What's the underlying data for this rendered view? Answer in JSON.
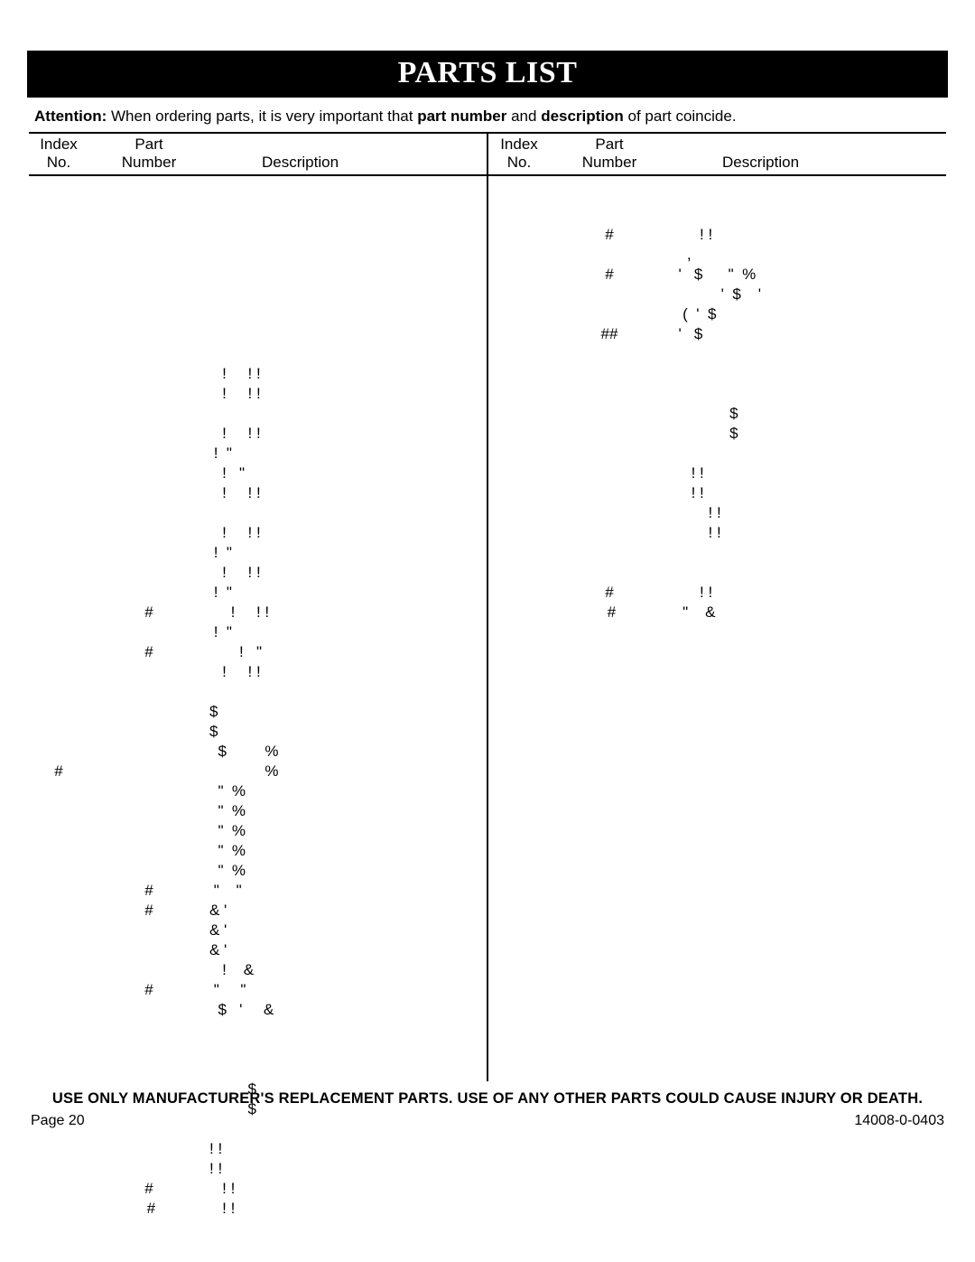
{
  "title": "PARTS LIST",
  "attention_prefix": "Attention:",
  "attention_mid1": " When ordering parts, it is very important that ",
  "attention_bold1": "part number",
  "attention_mid2": " and ",
  "attention_bold2": "description",
  "attention_mid3": " of part coincide.",
  "headers": {
    "index_l1": "Index",
    "index_l2": "No.",
    "part_l1": "Part",
    "part_l2": "Number",
    "desc": "Description"
  },
  "left_rows": [
    {
      "c1": "",
      "c2": "",
      "c3": ""
    },
    {
      "c1": "",
      "c2": "",
      "c3": ""
    },
    {
      "c1": "",
      "c2": "",
      "c3": ""
    },
    {
      "c1": "",
      "c2": "",
      "c3": ""
    },
    {
      "c1": "",
      "c2": "",
      "c3": ""
    },
    {
      "c1": "",
      "c2": "",
      "c3": ""
    },
    {
      "c1": "",
      "c2": "",
      "c3": ""
    },
    {
      "c1": "",
      "c2": "",
      "c3": ""
    },
    {
      "c1": "",
      "c2": "",
      "c3": ""
    },
    {
      "c1": "",
      "c2": "",
      "c3": "   !     ! !"
    },
    {
      "c1": "",
      "c2": "",
      "c3": "   !     ! !"
    },
    {
      "c1": "",
      "c2": "",
      "c3": ""
    },
    {
      "c1": "",
      "c2": "",
      "c3": "   !     ! !"
    },
    {
      "c1": "",
      "c2": "",
      "c3": " !  \""
    },
    {
      "c1": "",
      "c2": "",
      "c3": "   !   \""
    },
    {
      "c1": "",
      "c2": "",
      "c3": "   !     ! !"
    },
    {
      "c1": "",
      "c2": "",
      "c3": ""
    },
    {
      "c1": "",
      "c2": "",
      "c3": "   !     ! !"
    },
    {
      "c1": "",
      "c2": "",
      "c3": " !  \""
    },
    {
      "c1": "",
      "c2": "",
      "c3": "   !     ! !"
    },
    {
      "c1": "",
      "c2": "",
      "c3": " !  \""
    },
    {
      "c1": "",
      "c2": "#",
      "c3": "     !     ! !"
    },
    {
      "c1": "",
      "c2": "",
      "c3": " !  \""
    },
    {
      "c1": "",
      "c2": "#",
      "c3": "       !   \""
    },
    {
      "c1": "",
      "c2": "",
      "c3": "   !     ! !"
    },
    {
      "c1": "",
      "c2": "",
      "c3": ""
    },
    {
      "c1": "",
      "c2": "",
      "c3": "$"
    },
    {
      "c1": "",
      "c2": "",
      "c3": "$"
    },
    {
      "c1": "",
      "c2": "",
      "c3": "  $         %"
    },
    {
      "c1": "#",
      "c2": "",
      "c3": "             %"
    },
    {
      "c1": "",
      "c2": "",
      "c3": "  \"  %"
    },
    {
      "c1": "",
      "c2": "",
      "c3": "  \"  %"
    },
    {
      "c1": "",
      "c2": "",
      "c3": "  \"  %"
    },
    {
      "c1": "",
      "c2": "",
      "c3": "  \"  %"
    },
    {
      "c1": "",
      "c2": "",
      "c3": "  \"  %"
    },
    {
      "c1": "",
      "c2": "#",
      "c3": " \"    \""
    },
    {
      "c1": "",
      "c2": "#",
      "c3": "& '"
    },
    {
      "c1": "",
      "c2": "",
      "c3": "& '"
    },
    {
      "c1": "",
      "c2": "",
      "c3": "& '"
    },
    {
      "c1": "",
      "c2": "",
      "c3": "   !    &"
    },
    {
      "c1": "",
      "c2": "#",
      "c3": " \"     \""
    },
    {
      "c1": "",
      "c2": "",
      "c3": "  $   '     &"
    },
    {
      "c1": "",
      "c2": "",
      "c3": ""
    },
    {
      "c1": "",
      "c2": "",
      "c3": ""
    },
    {
      "c1": "",
      "c2": "",
      "c3": ""
    },
    {
      "c1": "",
      "c2": "",
      "c3": "         $"
    },
    {
      "c1": "",
      "c2": "",
      "c3": "         $"
    },
    {
      "c1": "",
      "c2": "",
      "c3": ""
    },
    {
      "c1": "",
      "c2": "",
      "c3": "! !"
    },
    {
      "c1": "",
      "c2": "",
      "c3": "! !"
    },
    {
      "c1": "",
      "c2": "#",
      "c3": "   ! !"
    },
    {
      "c1": "",
      "c2": " #",
      "c3": "   ! !"
    }
  ],
  "right_rows": [
    {
      "c1": "",
      "c2": "",
      "c3": ""
    },
    {
      "c1": "",
      "c2": "",
      "c3": ""
    },
    {
      "c1": "",
      "c2": "#",
      "c3": "       ! !"
    },
    {
      "c1": "",
      "c2": "",
      "c3": "    ,"
    },
    {
      "c1": "",
      "c2": "#",
      "c3": "  '   $      \"  %"
    },
    {
      "c1": "",
      "c2": "",
      "c3": "            '  $    '"
    },
    {
      "c1": "",
      "c2": "",
      "c3": "   (  '  $"
    },
    {
      "c1": "",
      "c2": "##",
      "c3": "  '   $"
    },
    {
      "c1": "",
      "c2": "",
      "c3": ""
    },
    {
      "c1": "",
      "c2": "",
      "c3": ""
    },
    {
      "c1": "",
      "c2": "",
      "c3": ""
    },
    {
      "c1": "",
      "c2": "",
      "c3": "              $"
    },
    {
      "c1": "",
      "c2": "",
      "c3": "              $"
    },
    {
      "c1": "",
      "c2": "",
      "c3": ""
    },
    {
      "c1": "",
      "c2": "",
      "c3": "     ! !"
    },
    {
      "c1": "",
      "c2": "",
      "c3": "     ! !"
    },
    {
      "c1": "",
      "c2": "",
      "c3": "         ! !"
    },
    {
      "c1": "",
      "c2": "",
      "c3": "         ! !"
    },
    {
      "c1": "",
      "c2": "",
      "c3": ""
    },
    {
      "c1": "",
      "c2": "",
      "c3": ""
    },
    {
      "c1": "",
      "c2": "#",
      "c3": "       ! !"
    },
    {
      "c1": "",
      "c2": " #",
      "c3": "   \"    &"
    }
  ],
  "warning": "USE ONLY MANUFACTURER'S REPLACEMENT PARTS. USE OF ANY OTHER PARTS COULD CAUSE INJURY OR DEATH.",
  "page_label": "Page 20",
  "doc_id": "14008-0-0403",
  "colors": {
    "title_bg": "#000000",
    "title_fg": "#ffffff",
    "text": "#000000",
    "rule": "#000000",
    "background": "#ffffff"
  }
}
